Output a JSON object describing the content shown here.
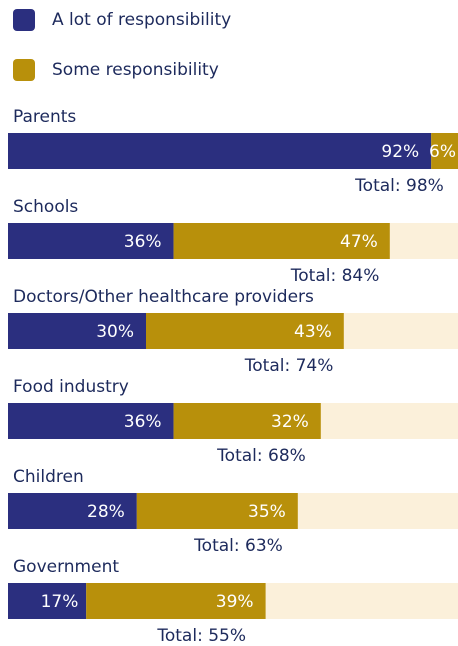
{
  "chart_data": {
    "type": "bar",
    "orientation": "horizontal",
    "stacked": true,
    "categories": [
      "Parents",
      "Schools",
      "Doctors/Other healthcare providers",
      "Food industry",
      "Children",
      "Government"
    ],
    "series": [
      {
        "name": "A lot of responsibility",
        "color": "#2b2f7f",
        "values": [
          92,
          36,
          30,
          36,
          28,
          17
        ],
        "value_labels": [
          "92%",
          "36%",
          "30%",
          "36%",
          "28%",
          "17%"
        ]
      },
      {
        "name": "Some responsibility",
        "color": "#b8900b",
        "values": [
          6,
          47,
          43,
          32,
          35,
          39
        ],
        "value_labels": [
          "6%",
          "47%",
          "43%",
          "32%",
          "35%",
          "39%"
        ]
      }
    ],
    "totals": [
      98,
      84,
      74,
      68,
      63,
      55
    ],
    "total_labels": [
      "Total: 98%",
      "Total: 84%",
      "Total: 74%",
      "Total: 68%",
      "Total: 63%",
      "Total: 55%"
    ],
    "xlim": [
      0,
      100
    ],
    "track_color": "#fbf0da"
  }
}
